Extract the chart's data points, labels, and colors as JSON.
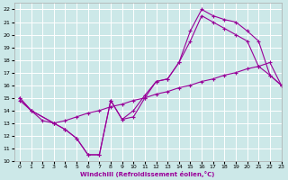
{
  "xlabel": "Windchill (Refroidissement éolien,°C)",
  "xlim": [
    -0.5,
    23
  ],
  "ylim": [
    10,
    22.5
  ],
  "xticks": [
    0,
    1,
    2,
    3,
    4,
    5,
    6,
    7,
    8,
    9,
    10,
    11,
    12,
    13,
    14,
    15,
    16,
    17,
    18,
    19,
    20,
    21,
    22,
    23
  ],
  "yticks": [
    10,
    11,
    12,
    13,
    14,
    15,
    16,
    17,
    18,
    19,
    20,
    21,
    22
  ],
  "bg_color": "#cce8e8",
  "grid_color": "#ffffff",
  "line_color": "#990099",
  "line1_x": [
    0,
    1,
    3,
    4,
    5,
    6,
    7,
    8,
    9,
    10,
    11,
    12,
    13,
    14,
    15,
    16,
    17,
    18,
    19,
    20,
    21,
    22,
    23
  ],
  "line1_y": [
    15,
    14,
    13,
    12.5,
    11.8,
    10.5,
    10.5,
    14.8,
    13.3,
    13.5,
    15.0,
    16.3,
    16.5,
    17.8,
    20.3,
    22.0,
    21.5,
    21.2,
    21.0,
    20.3,
    19.5,
    16.8,
    16.0
  ],
  "line2_x": [
    0,
    1,
    3,
    4,
    5,
    6,
    7,
    8,
    9,
    10,
    11,
    12,
    13,
    14,
    15,
    16,
    17,
    18,
    19,
    20,
    21,
    22,
    23
  ],
  "line2_y": [
    15,
    14,
    13,
    12.5,
    11.8,
    10.5,
    10.5,
    14.8,
    13.3,
    14.0,
    15.2,
    16.3,
    16.5,
    17.8,
    19.5,
    21.5,
    21.0,
    20.5,
    20.0,
    19.5,
    17.5,
    16.8,
    16.0
  ],
  "line3_x": [
    0,
    1,
    2,
    3,
    4,
    5,
    6,
    7,
    8,
    9,
    10,
    11,
    12,
    13,
    14,
    15,
    16,
    17,
    18,
    19,
    20,
    21,
    22,
    23
  ],
  "line3_y": [
    14.8,
    14.0,
    13.2,
    13.0,
    13.2,
    13.5,
    13.8,
    14.0,
    14.3,
    14.5,
    14.8,
    15.0,
    15.3,
    15.5,
    15.8,
    16.0,
    16.3,
    16.5,
    16.8,
    17.0,
    17.3,
    17.5,
    17.8,
    16.0
  ]
}
